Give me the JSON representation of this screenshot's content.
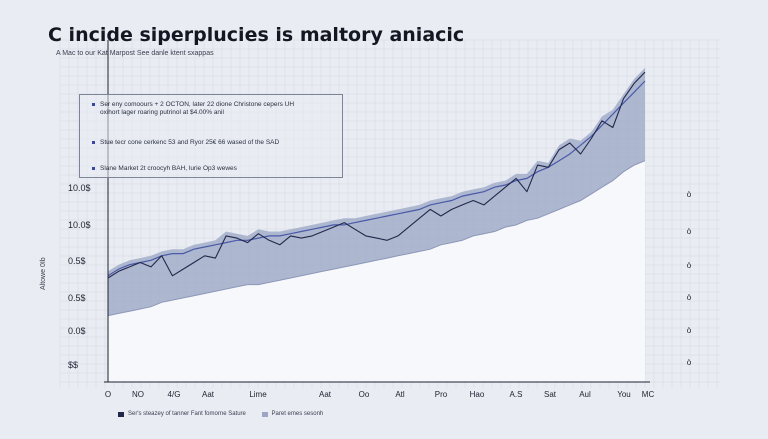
{
  "chart_data": {
    "type": "area",
    "title": "C incide siperplucies is maltory aniacic",
    "subtitle": "A Mac to our Kat Marpost See danle ktent sxappas",
    "ylabel": "Altowe 0Ib",
    "y_ticks": [
      "10.0$",
      "10.0$",
      "0.5$",
      "0.5$",
      "0.0$",
      "$$"
    ],
    "x_ticks": [
      "O",
      "NO",
      "4/G",
      "Aat",
      "Lime",
      "Aat",
      "Oo",
      "Atl",
      "Pro",
      "Hao",
      "A.S",
      "Sat",
      "Aul",
      "You",
      "MC"
    ],
    "right_ticks": [
      "ò",
      "ò",
      "ò",
      "ò",
      "ò",
      "ò"
    ],
    "annotations": [
      "Ser eny comoours + 2 OCTON, later 22 dione Christone cepers UH",
      "oxihort lager roaring putrinol at $4.00% anil",
      "Stue tecr cone cerkenc 53 and Ryor 25€ 66 wased of the SAD",
      "Slane Market 2t croocyh BAH, lurie Op3 wewes"
    ],
    "legend": [
      {
        "label": "Ser's steazey of tanner Fant fomorne Sature",
        "color": "#23284a"
      },
      {
        "label": "Paret emes sesonh",
        "color": "#9aa6c4"
      }
    ],
    "x": [
      0,
      2,
      4,
      6,
      8,
      10,
      12,
      14,
      16,
      18,
      20,
      22,
      24,
      26,
      28,
      30,
      32,
      34,
      36,
      38,
      40,
      42,
      44,
      46,
      48,
      50,
      52,
      54,
      56,
      58,
      60,
      62,
      64,
      66,
      68,
      70,
      72,
      74,
      76,
      78,
      80,
      82,
      84,
      86,
      88,
      90,
      92,
      94,
      96,
      98,
      100
    ],
    "series": [
      {
        "values": [
          47,
          50,
          52,
          54,
          52,
          57,
          48,
          51,
          54,
          57,
          56,
          66,
          65,
          63,
          67,
          64,
          62,
          66,
          65,
          66,
          68,
          70,
          72,
          69,
          66,
          65,
          64,
          66,
          70,
          74,
          78,
          75,
          78,
          80,
          82,
          80,
          84,
          88,
          92,
          86,
          98,
          97,
          105,
          108,
          103,
          110,
          118,
          115,
          128,
          135,
          140
        ]
      },
      {
        "values": [
          48,
          51,
          53,
          54,
          55,
          57,
          58,
          58,
          60,
          61,
          62,
          63,
          64,
          64,
          65,
          66,
          66,
          67,
          68,
          69,
          70,
          71,
          71,
          72,
          73,
          74,
          75,
          76,
          77,
          78,
          80,
          81,
          82,
          84,
          85,
          86,
          88,
          89,
          91,
          92,
          95,
          97,
          100,
          103,
          107,
          111,
          116,
          121,
          126,
          131,
          136
        ]
      },
      {
        "values": [
          30,
          31,
          32,
          33,
          34,
          36,
          37,
          38,
          39,
          40,
          41,
          42,
          43,
          44,
          44,
          45,
          46,
          47,
          48,
          49,
          50,
          51,
          52,
          53,
          54,
          55,
          56,
          57,
          58,
          59,
          60,
          62,
          63,
          64,
          66,
          67,
          68,
          70,
          71,
          73,
          74,
          76,
          78,
          80,
          82,
          85,
          88,
          91,
          95,
          98,
          100
        ]
      }
    ],
    "ylim": [
      0,
      150
    ],
    "grid": true,
    "colors": {
      "line": "#23284a",
      "trend": "#4a5aa8",
      "band": "#9aa6c4",
      "under": "#f7f8fb",
      "background": "#e9ecf2",
      "grid": "#d4d9e3"
    }
  }
}
